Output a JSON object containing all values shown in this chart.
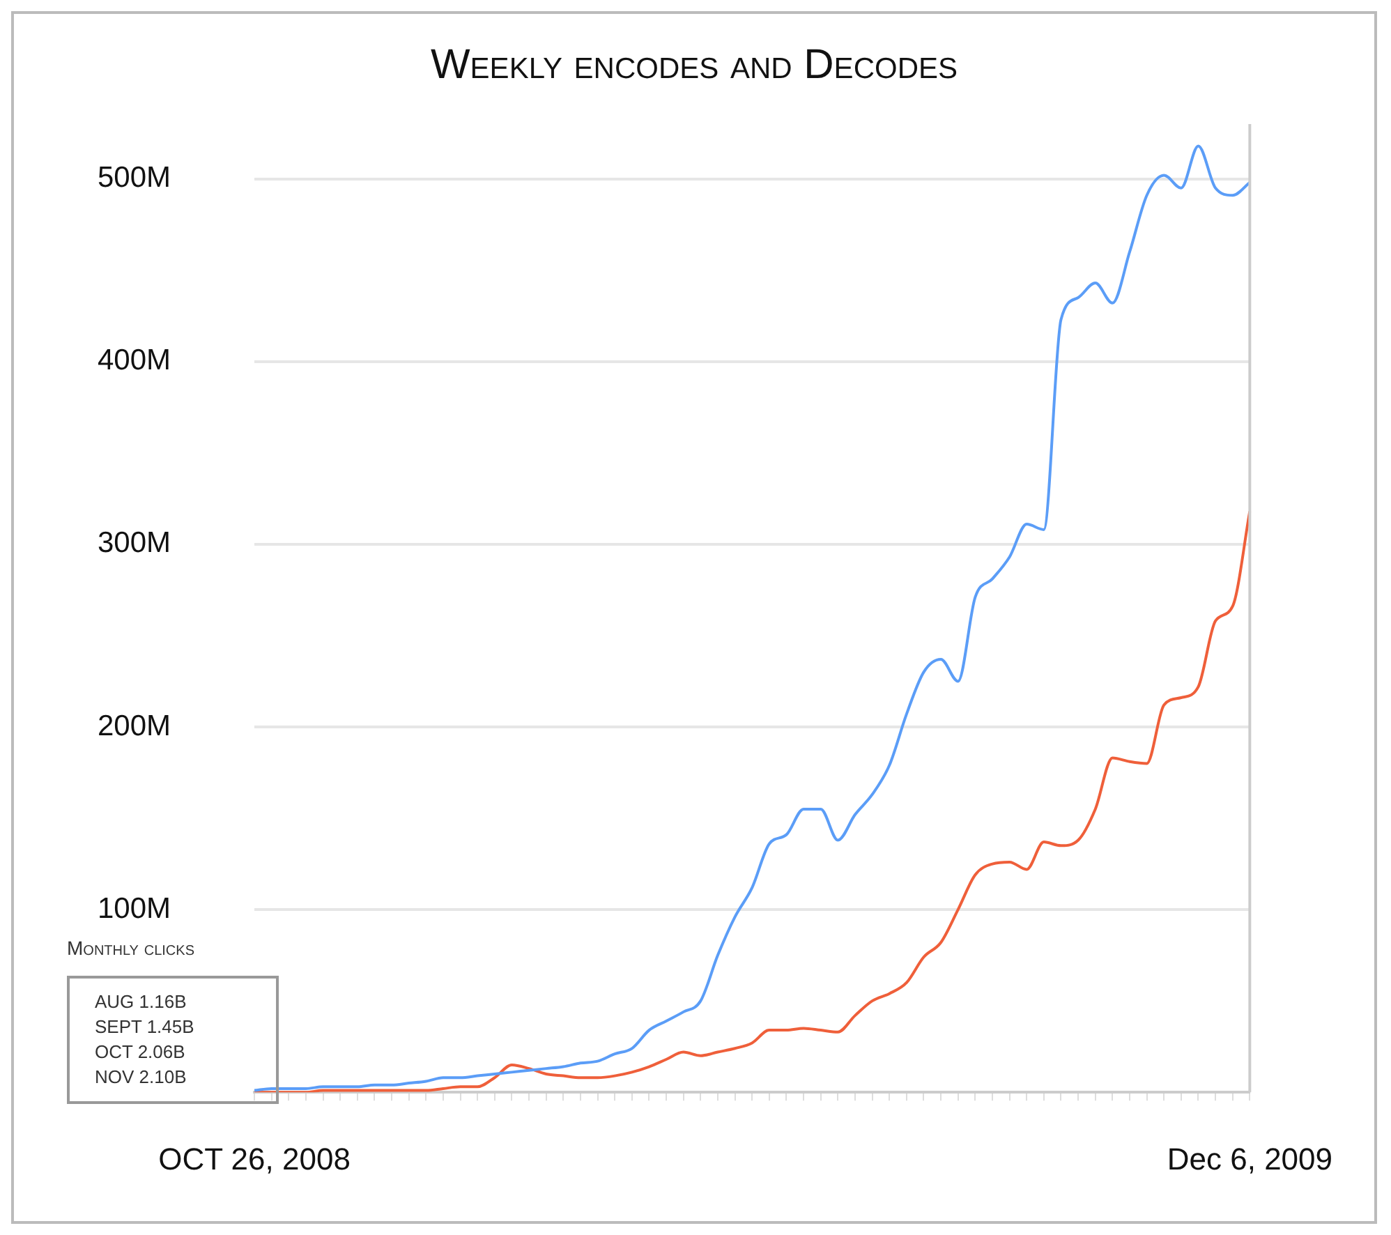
{
  "chart_data": {
    "type": "line",
    "title": "Weekly encodes and Decodes",
    "categories": [
      "OCT 26, 2008",
      null,
      null,
      null,
      null,
      null,
      null,
      null,
      null,
      null,
      null,
      null,
      null,
      null,
      null,
      null,
      null,
      null,
      null,
      null,
      null,
      null,
      null,
      null,
      null,
      null,
      null,
      null,
      null,
      null,
      null,
      null,
      null,
      null,
      null,
      null,
      null,
      null,
      null,
      null,
      null,
      null,
      null,
      null,
      null,
      null,
      null,
      null,
      null,
      null,
      null,
      null,
      null,
      null,
      null,
      null,
      null,
      null,
      "Dec 6, 2009"
    ],
    "series": [
      {
        "color": "#5b9df7",
        "values": [
          1,
          2,
          2,
          2,
          3,
          3,
          3,
          4,
          4,
          5,
          6,
          8,
          8,
          9,
          10,
          11,
          12,
          13,
          14,
          16,
          17,
          21,
          24,
          34,
          39,
          44,
          50,
          75,
          96,
          112,
          136,
          141,
          155,
          155,
          138,
          152,
          163,
          179,
          207,
          230,
          237,
          225,
          271,
          281,
          293,
          311,
          308,
          423,
          435,
          443,
          432,
          460,
          491,
          502,
          495,
          518,
          495,
          491,
          498
        ]
      },
      {
        "color": "#ef5f3a",
        "values": [
          0,
          0,
          0,
          0,
          1,
          1,
          1,
          1,
          1,
          1,
          1,
          2,
          3,
          3,
          8,
          15,
          13,
          10,
          9,
          8,
          8,
          9,
          11,
          14,
          18,
          22,
          20,
          22,
          24,
          27,
          34,
          34,
          35,
          34,
          33,
          42,
          50,
          54,
          60,
          74,
          82,
          100,
          119,
          125,
          126,
          122,
          137,
          135,
          138,
          155,
          183,
          181,
          180,
          212,
          216,
          222,
          258,
          266,
          318
        ]
      }
    ],
    "ylim": [
      0,
      530
    ],
    "yticks": [
      {
        "value": 0,
        "label": null
      },
      {
        "value": 100,
        "label": "100M"
      },
      {
        "value": 200,
        "label": "200M"
      },
      {
        "value": 300,
        "label": "300M"
      },
      {
        "value": 400,
        "label": "400M"
      },
      {
        "value": 500,
        "label": "500M"
      }
    ],
    "grid": "y",
    "legend": false,
    "marker": "none",
    "line_style": "solid",
    "annotations": [
      "Monthly clicks",
      "AUG 1.16B",
      "SEPT 1.45B",
      "OCT 2.06B",
      "NOV 2.10B"
    ]
  }
}
